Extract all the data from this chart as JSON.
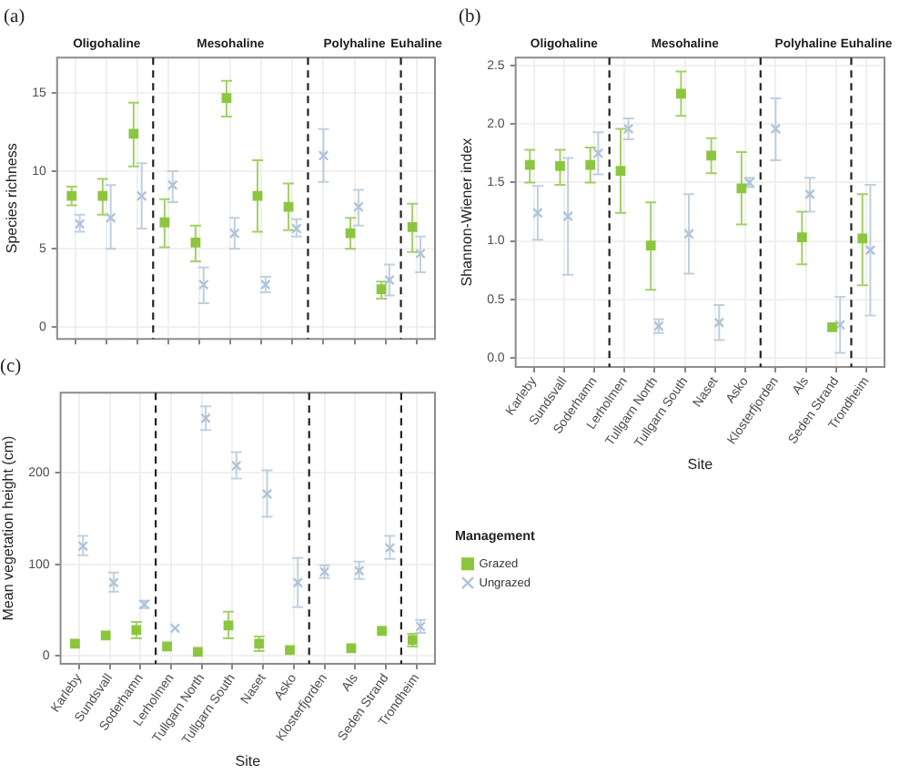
{
  "chart_data": [
    {
      "type": "scatter",
      "title": "(a)",
      "ylabel": "Species richness",
      "categories": [
        null,
        null,
        null,
        null,
        null,
        null,
        null,
        null,
        null,
        null,
        null,
        null
      ],
      "series": [
        {
          "color": "#8cc63e",
          "marker": "square",
          "values": [
            8.4,
            8.4,
            12.4,
            6.7,
            5.4,
            14.7,
            8.4,
            7.7,
            null,
            6.0,
            2.4,
            6.4
          ],
          "errors": [
            [
              7.8,
              9.0
            ],
            [
              7.2,
              9.5
            ],
            [
              10.3,
              14.4
            ],
            [
              5.1,
              8.2
            ],
            [
              4.2,
              6.5
            ],
            [
              13.5,
              15.8
            ],
            [
              6.1,
              10.7
            ],
            [
              6.2,
              9.2
            ],
            null,
            [
              5.0,
              7.0
            ],
            [
              1.8,
              2.9
            ],
            [
              4.8,
              7.9
            ]
          ]
        },
        {
          "color": "#b0c4d8",
          "marker": "cross",
          "values": [
            6.6,
            7.0,
            8.4,
            9.1,
            2.7,
            6.0,
            2.7,
            6.3,
            11.0,
            7.7,
            3.0,
            4.7
          ],
          "errors": [
            [
              6.1,
              7.2
            ],
            [
              5.0,
              9.1
            ],
            [
              6.3,
              10.5
            ],
            [
              8.0,
              10.0
            ],
            [
              1.5,
              3.8
            ],
            [
              5.0,
              7.0
            ],
            [
              2.2,
              3.2
            ],
            [
              5.8,
              6.9
            ],
            [
              9.3,
              12.7
            ],
            [
              6.5,
              8.8
            ],
            [
              2.0,
              4.0
            ],
            [
              3.5,
              5.8
            ]
          ]
        }
      ],
      "ylim": [
        -0.8,
        17.3
      ],
      "yticks": [
        0,
        5,
        10,
        15
      ],
      "annotations": [
        "Oligohaline",
        "Mesohaline",
        "Polyhaline",
        "Euhaline"
      ],
      "grid": true
    },
    {
      "type": "scatter",
      "title": "(b)",
      "xlabel": "Site",
      "ylabel": "Shannon-Wiener index",
      "categories": [
        "Karleby",
        "Sundsvall",
        "Soderhamn",
        "Lerholmen",
        "Tullgarn North",
        "Tullgarn South",
        "Naset",
        "Asko",
        "Klosterfjorden",
        "Als",
        "Seden Strand",
        "Trondheim"
      ],
      "series": [
        {
          "color": "#8cc63e",
          "marker": "square",
          "values": [
            1.65,
            1.64,
            1.65,
            1.6,
            0.96,
            2.26,
            1.73,
            1.45,
            null,
            1.03,
            0.26,
            1.02
          ],
          "errors": [
            [
              1.5,
              1.78
            ],
            [
              1.48,
              1.78
            ],
            [
              1.5,
              1.8
            ],
            [
              1.24,
              1.96
            ],
            [
              0.58,
              1.33
            ],
            [
              2.07,
              2.45
            ],
            [
              1.58,
              1.88
            ],
            [
              1.14,
              1.76
            ],
            null,
            [
              0.8,
              1.25
            ],
            null,
            [
              0.62,
              1.4
            ]
          ]
        },
        {
          "color": "#b0c4d8",
          "marker": "cross",
          "values": [
            1.24,
            1.21,
            1.75,
            1.96,
            0.27,
            1.06,
            0.3,
            1.5,
            1.96,
            1.4,
            0.28,
            0.92
          ],
          "errors": [
            [
              1.01,
              1.47
            ],
            [
              0.71,
              1.71
            ],
            [
              1.57,
              1.93
            ],
            [
              1.87,
              2.05
            ],
            [
              0.21,
              0.33
            ],
            [
              0.72,
              1.4
            ],
            [
              0.15,
              0.45
            ],
            [
              1.46,
              1.54
            ],
            [
              1.69,
              2.22
            ],
            [
              1.25,
              1.54
            ],
            [
              0.04,
              0.52
            ],
            [
              0.36,
              1.48
            ]
          ]
        }
      ],
      "ylim": [
        -0.08,
        2.57
      ],
      "yticks": [
        {
          "value": 0,
          "label": "0.0"
        },
        0.5,
        {
          "value": 1,
          "label": "1.0"
        },
        1.5,
        {
          "value": 2,
          "label": "2.0"
        },
        2.5
      ],
      "annotations": [
        "Oligohaline",
        "Mesohaline",
        "Polyhaline",
        "Euhaline"
      ],
      "grid": true
    },
    {
      "type": "scatter",
      "title": "(c)",
      "xlabel": "Site",
      "ylabel": "Mean vegetation height (cm)",
      "legend_title": "Management",
      "categories": [
        "Karleby",
        "Sundsvall",
        "Soderhamn",
        "Lerholmen",
        "Tullgarn North",
        "Tullgarn South",
        "Naset",
        "Asko",
        "Klosterfjorden",
        "Als",
        "Seden Strand",
        "Trondheim"
      ],
      "series": [
        {
          "name": "Grazed",
          "color": "#8cc63e",
          "marker": "square",
          "values": [
            13,
            22,
            28,
            10,
            4,
            33,
            13,
            6,
            null,
            8,
            27,
            17
          ],
          "errors": [
            null,
            null,
            [
              19,
              37
            ],
            null,
            null,
            [
              19,
              48
            ],
            [
              5,
              21
            ],
            null,
            null,
            null,
            null,
            [
              10,
              24
            ]
          ]
        },
        {
          "name": "Ungrazed",
          "color": "#b0c4d8",
          "marker": "cross",
          "values": [
            120,
            80,
            56,
            30,
            260,
            208,
            177,
            80,
            92,
            93,
            118,
            32
          ],
          "errors": [
            [
              110,
              131
            ],
            [
              70,
              91
            ],
            [
              52,
              60
            ],
            null,
            [
              247,
              273
            ],
            [
              194,
              223
            ],
            [
              152,
              203
            ],
            [
              53,
              107
            ],
            [
              85,
              99
            ],
            [
              84,
              103
            ],
            [
              106,
              131
            ],
            [
              25,
              39
            ]
          ]
        }
      ],
      "ylim": [
        -9,
        288
      ],
      "yticks": [
        0,
        100,
        200
      ],
      "grid": true,
      "legend": "right"
    }
  ]
}
